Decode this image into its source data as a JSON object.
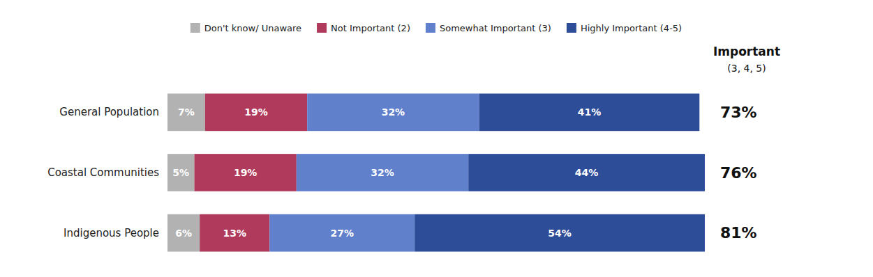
{
  "chart_data": {
    "type": "bar",
    "orientation": "horizontal",
    "stacked": true,
    "data_labels": true,
    "tick_labels": false,
    "legend": "top",
    "categories": [
      "General Population",
      "Coastal Communities",
      "Indigenous People"
    ],
    "series": [
      {
        "name": "Don't know/ Unaware",
        "color": "#b2b2b2",
        "values": [
          7,
          5,
          6
        ],
        "value_labels": [
          "7%",
          "5%",
          "6%"
        ]
      },
      {
        "name": "Not Important (2)",
        "color": "#b03a5b",
        "values": [
          19,
          19,
          13
        ],
        "value_labels": [
          "19%",
          "19%",
          "13%"
        ]
      },
      {
        "name": "Somewhat Important (3)",
        "color": "#6080cc",
        "values": [
          32,
          32,
          27
        ],
        "value_labels": [
          "32%",
          "32%",
          "27%"
        ]
      },
      {
        "name": "Highly Important (4-5)",
        "color": "#2e4d99",
        "values": [
          41,
          44,
          54
        ],
        "value_labels": [
          "41%",
          "44%",
          "54%"
        ]
      }
    ],
    "xlim": [
      0,
      100
    ],
    "annotations": [
      {
        "text": "Important"
      },
      {
        "text": "(3, 4, 5)"
      },
      {
        "text": "73%",
        "value": 73,
        "category": "General Population"
      },
      {
        "text": "76%",
        "value": 76,
        "category": "Coastal Communities"
      },
      {
        "text": "81%",
        "value": 81,
        "category": "Indigenous People"
      }
    ]
  }
}
